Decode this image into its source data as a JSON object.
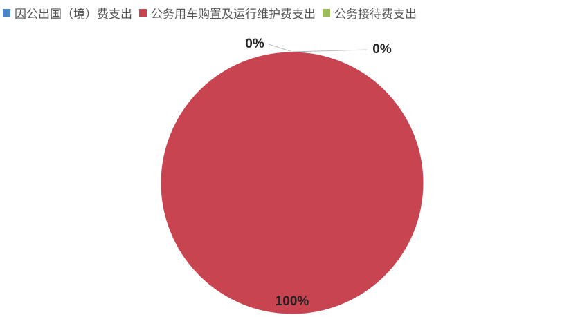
{
  "chart_data": {
    "type": "pie",
    "categories": [
      "因公出国（境）费支出",
      "公务用车购置及运行维护费支出",
      "公务接待费支出"
    ],
    "values": [
      0,
      100,
      0
    ],
    "value_labels": [
      "0%",
      "100%",
      "0%"
    ],
    "colors": [
      "#4a86c5",
      "#c84450",
      "#9bbb59"
    ],
    "legend": "top"
  }
}
